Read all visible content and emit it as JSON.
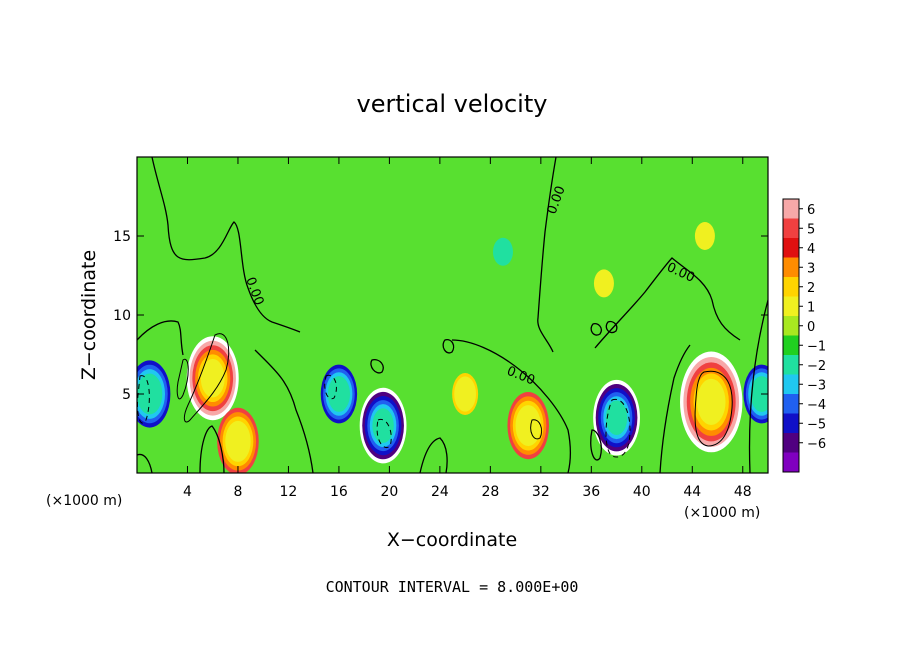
{
  "chart_data": {
    "type": "heatmap",
    "title": "vertical velocity",
    "xlabel": "X−coordinate",
    "ylabel": "Z−coordinate",
    "x_unit_left": "(×1000 m)",
    "x_unit_right": "(×1000 m)",
    "footnote": "CONTOUR INTERVAL = 8.000E+00",
    "xlim": [
      0,
      50
    ],
    "ylim": [
      0,
      20
    ],
    "xticks": [
      4,
      8,
      12,
      16,
      20,
      24,
      28,
      32,
      36,
      40,
      44,
      48
    ],
    "yticks": [
      5,
      10,
      15
    ],
    "colorbar": {
      "levels": [
        "6",
        "5",
        "4",
        "3",
        "2",
        "1",
        "0",
        "−1",
        "−2",
        "−3",
        "−4",
        "−5",
        "−6"
      ],
      "colors": [
        "#f7a8a8",
        "#f04040",
        "#e01010",
        "#ff8c00",
        "#ffd400",
        "#f0f020",
        "#a8e820",
        "#20d020",
        "#20e0a0",
        "#20c8f0",
        "#2060f0",
        "#1010c8",
        "#500080",
        "#8000c0"
      ]
    },
    "contour_labels": [
      "0.00",
      "0.00",
      "0.00",
      "0.00"
    ],
    "features": [
      {
        "kind": "updraft",
        "x": 6,
        "z": 6,
        "value": 10
      },
      {
        "kind": "updraft",
        "x": 8,
        "z": 2,
        "value": 8
      },
      {
        "kind": "updraft",
        "x": 26,
        "z": 5,
        "value": 5
      },
      {
        "kind": "updraft",
        "x": 31,
        "z": 3,
        "value": 8
      },
      {
        "kind": "updraft",
        "x": 37,
        "z": 12,
        "value": 3
      },
      {
        "kind": "updraft",
        "x": 45.5,
        "z": 4.5,
        "value": 12
      },
      {
        "kind": "updraft",
        "x": 45,
        "z": 15,
        "value": 2
      },
      {
        "kind": "downdraft",
        "x": 1,
        "z": 5,
        "value": -8
      },
      {
        "kind": "downdraft",
        "x": 16,
        "z": 5,
        "value": -7
      },
      {
        "kind": "downdraft",
        "x": 19.5,
        "z": 3,
        "value": -9
      },
      {
        "kind": "downdraft",
        "x": 38,
        "z": 3.5,
        "value": -9
      },
      {
        "kind": "downdraft",
        "x": 49.5,
        "z": 5,
        "value": -7
      },
      {
        "kind": "downdraft",
        "x": 29,
        "z": 14,
        "value": -3
      }
    ]
  }
}
